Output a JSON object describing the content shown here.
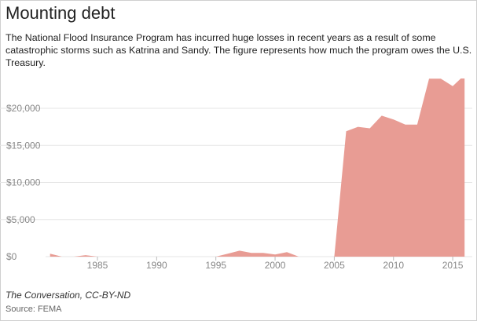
{
  "header": {
    "title": "Mounting debt",
    "subtitle": "The National Flood Insurance Program has incurred huge losses in recent years as a result of some catastrophic storms such as Katrina and Sandy. The figure represents how much the program owes the U.S. Treasury."
  },
  "footer": {
    "credit": "The Conversation, CC-BY-ND",
    "source": "Source: FEMA"
  },
  "colors": {
    "area_fill": "#e89c94",
    "gridline": "#e6e6e6",
    "tick_text": "#888888"
  },
  "chart_data": {
    "type": "area",
    "title": "Mounting debt",
    "xlabel": "",
    "ylabel": "",
    "xlim": [
      1981,
      2016
    ],
    "ylim": [
      0,
      24500
    ],
    "grid": true,
    "legend": "none",
    "x_ticks": [
      1985,
      1990,
      1995,
      2000,
      2005,
      2010,
      2015
    ],
    "x_tick_labels": [
      "1985",
      "1990",
      "1995",
      "2000",
      "2005",
      "2010",
      "2015"
    ],
    "y_ticks": [
      0,
      5000,
      10000,
      15000,
      20000
    ],
    "y_tick_labels": [
      "$0",
      "$5,000",
      "$10,000",
      "$15,000",
      "$20,000"
    ],
    "series": [
      {
        "x": [
          1981,
          1982,
          1983,
          1984,
          1985,
          1986,
          1987,
          1988,
          1989,
          1990,
          1991,
          1992,
          1993,
          1994,
          1995,
          1996,
          1997,
          1998,
          1999,
          2000,
          2001,
          2002,
          2003,
          2004,
          2005,
          2006,
          2007,
          2008,
          2009,
          2010,
          2011,
          2012,
          2013,
          2014,
          2015,
          2016
        ],
        "values": [
          400,
          0,
          0,
          200,
          0,
          0,
          0,
          0,
          0,
          0,
          0,
          0,
          0,
          0,
          0,
          400,
          800,
          500,
          500,
          300,
          600,
          0,
          0,
          0,
          0,
          16900,
          17500,
          17300,
          19000,
          18500,
          17800,
          17800,
          24000,
          24000,
          23000,
          24500
        ]
      }
    ]
  }
}
